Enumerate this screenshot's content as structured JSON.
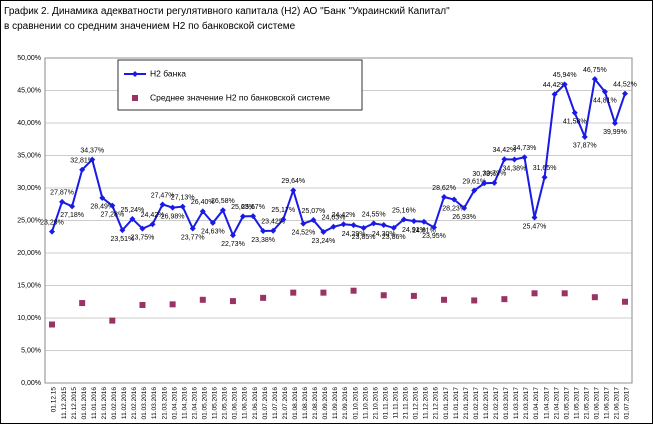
{
  "chart_data": {
    "type": "line",
    "title": "График 2. Динамика адекватности регулятивного капитала (Н2) АО \"Банк \"Украинский Капитал\"",
    "subtitle": "в сравнении со средним значением Н2 по банковской системе",
    "categories": [
      "01.12.15",
      "11.12.2015",
      "21.12.2015",
      "01.01.2016",
      "11.01.2016",
      "21.01.2016",
      "01.02.2016",
      "11.02.2016",
      "21.02.2016",
      "01.03.2016",
      "11.03.2016",
      "21.03.2016",
      "01.04.2016",
      "11.04.2016",
      "21.04.2016",
      "01.05.2016",
      "11.05.2016",
      "21.05.2016",
      "01.06.2016",
      "11.06.2016",
      "21.06.2016",
      "01.07.2016",
      "11.07.2016",
      "21.07.2016",
      "01.08.2016",
      "11.08.2016",
      "21.08.2016",
      "01.09.2016",
      "11.09.2016",
      "21.09.2016",
      "01.10.2016",
      "11.10.2016",
      "21.10.2016",
      "01.11.2016",
      "11.11.2016",
      "21.11.2016",
      "01.12.2016",
      "11.12.2016",
      "21.12.2016",
      "01.01.2017",
      "11.01.2017",
      "21.01.2017",
      "01.02.2017",
      "11.02.2017",
      "21.02.2017",
      "01.03.2017",
      "11.03.2017",
      "21.03.2017",
      "01.04.2017",
      "11.04.2017",
      "21.04.2017",
      "01.05.2017",
      "11.05.2017",
      "21.05.2017",
      "01.06.2017",
      "11.06.2017",
      "21.06.2017",
      "01.07.2017"
    ],
    "series": [
      {
        "name": "Н2 банка",
        "color": "#1a1ae6",
        "line": true,
        "values": [
          23.29,
          27.87,
          27.18,
          32.81,
          34.37,
          28.49,
          27.28,
          23.51,
          25.24,
          23.75,
          24.42,
          27.47,
          26.98,
          27.13,
          23.77,
          26.4,
          24.63,
          26.58,
          22.73,
          25.63,
          25.67,
          23.38,
          23.42,
          25.17,
          29.64,
          24.52,
          25.07,
          23.24,
          24.03,
          24.42,
          24.29,
          23.85,
          24.55,
          24.3,
          23.86,
          25.16,
          24.91,
          24.81,
          23.95,
          28.62,
          28.23,
          26.93,
          29.61,
          30.73,
          30.79,
          34.42,
          34.38,
          34.73,
          25.47,
          31.65,
          44.42,
          45.94,
          41.58,
          37.87,
          46.75,
          44.81,
          39.99,
          44.52
        ],
        "value_labels": [
          "23,29%",
          "27,87%",
          "27,18%",
          "32,81%",
          "34,37%",
          "28,49%",
          "27,28%",
          "23,51%",
          "25,24%",
          "23,75%",
          "24,42%",
          "27,47%",
          "26,98%",
          "27,13%",
          "23,77%",
          "26,40%",
          "24,63%",
          "26,58%",
          "22,73%",
          "25,63%",
          "25,67%",
          "23,38%",
          "23,42%",
          "25,17%",
          "29,64%",
          "24,52%",
          "25,07%",
          "23,24%",
          "24,03%",
          "24,42%",
          "24,29%",
          "23,85%",
          "24,55%",
          "24,30%",
          "23,86%",
          "25,16%",
          "24,91%",
          "24,81%",
          "23,95%",
          "28,62%",
          "28,23%",
          "26,93%",
          "29,61%",
          "30,73%",
          "30,79%",
          "34,42%",
          "34,38%",
          "34,73%",
          "25,47%",
          "31,65%",
          "44,42%",
          "45,94%",
          "41,58%",
          "37,87%",
          "46,75%",
          "44,81%",
          "39,99%",
          "44,52%"
        ]
      },
      {
        "name": "Среднее значение Н2 по банковской системе",
        "color": "#993366",
        "line": false,
        "values": [
          9.0,
          null,
          null,
          12.3,
          null,
          null,
          9.6,
          null,
          null,
          12.0,
          null,
          null,
          12.1,
          null,
          null,
          12.8,
          null,
          null,
          12.6,
          null,
          null,
          13.1,
          null,
          null,
          13.9,
          null,
          null,
          13.9,
          null,
          null,
          14.2,
          null,
          null,
          13.5,
          null,
          null,
          13.4,
          null,
          null,
          12.8,
          null,
          null,
          12.7,
          null,
          null,
          12.9,
          null,
          null,
          13.8,
          null,
          null,
          13.8,
          null,
          null,
          13.2,
          null,
          null,
          12.5
        ]
      }
    ],
    "ylim": [
      0,
      50
    ],
    "yticks": [
      {
        "value": 0,
        "label": "0,00%"
      },
      {
        "value": 5,
        "label": "5,00%"
      },
      {
        "value": 10,
        "label": "10,00%"
      },
      {
        "value": 15,
        "label": "15,00%"
      },
      {
        "value": 20,
        "label": "20,00%"
      },
      {
        "value": 25,
        "label": "25,00%"
      },
      {
        "value": 30,
        "label": "30,00%"
      },
      {
        "value": 35,
        "label": "35,00%"
      },
      {
        "value": 40,
        "label": "40,00%"
      },
      {
        "value": 45,
        "label": "45,00%"
      },
      {
        "value": 50,
        "label": "50,00%"
      }
    ],
    "grid": true
  }
}
